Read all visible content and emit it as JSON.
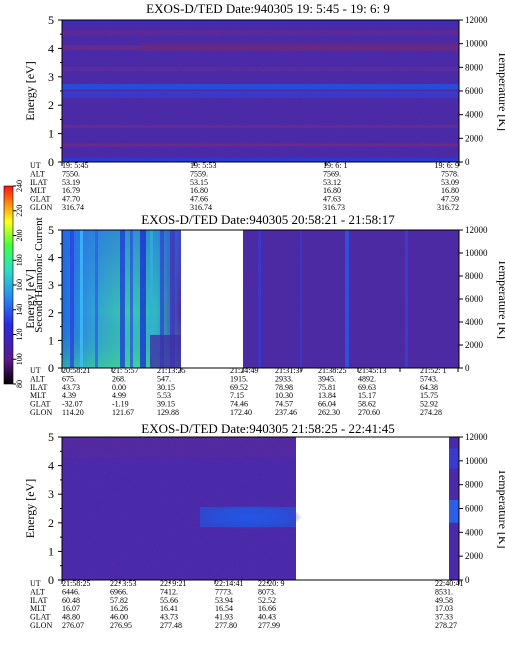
{
  "colorbar": {
    "label": "Second Harmonic Current",
    "ticks": [
      "80",
      "100",
      "120",
      "140",
      "160",
      "180",
      "200",
      "220",
      "240"
    ]
  },
  "row_labels": [
    "UT",
    "ALT",
    "ILAT",
    "MLT",
    "GLAT",
    "GLON"
  ],
  "chart_data": [
    {
      "type": "heatmap",
      "title": "EXOS-D/TED   Date:940305  19: 5:45 - 19: 6: 9",
      "ylabel": "Energy [eV]",
      "y2label": "Temperature [K]",
      "ylim": [
        0,
        5
      ],
      "y2lim": [
        0,
        12000
      ],
      "yticks": [
        "0",
        "1",
        "2",
        "3",
        "4",
        "5"
      ],
      "y2ticks": [
        "0",
        "2000",
        "4000",
        "6000",
        "8000",
        "10000",
        "12000"
      ],
      "columns": [
        {
          "UT": "19: 5:45",
          "ALT": "7550.",
          "ILAT": "53.19",
          "MLT": "16.79",
          "GLAT": "47.70",
          "GLON": "316.74"
        },
        {
          "UT": "19: 5:53",
          "ALT": "7559.",
          "ILAT": "53.15",
          "MLT": "16.80",
          "GLAT": "47.66",
          "GLON": "316.74"
        },
        {
          "UT": "19: 6: 1",
          "ALT": "7569.",
          "ILAT": "53.12",
          "MLT": "16.80",
          "GLAT": "47.63",
          "GLON": "316.73"
        },
        {
          "UT": "19: 6: 9",
          "ALT": "7578.",
          "ILAT": "53.09",
          "MLT": "16.80",
          "GLAT": "47.59",
          "GLON": "316.72"
        }
      ]
    },
    {
      "type": "heatmap",
      "title": "EXOS-D/TED   Date:940305  20:58:21 - 21:58:17",
      "ylabel": "Energy [eV]",
      "y2label": "Temperature [K]",
      "ylim": [
        0,
        5
      ],
      "y2lim": [
        0,
        12000
      ],
      "yticks": [
        "0",
        "1",
        "2",
        "3",
        "4",
        "5"
      ],
      "y2ticks": [
        "0",
        "2000",
        "4000",
        "6000",
        "8000",
        "10000",
        "12000"
      ],
      "columns": [
        {
          "UT": "20:58:21",
          "ALT": "675.",
          "ILAT": "43.73",
          "MLT": "4.39",
          "GLAT": "-32.07",
          "GLON": "114.20"
        },
        {
          "UT": "21: 5:57",
          "ALT": "268.",
          "ILAT": "0.00",
          "MLT": "4.99",
          "GLAT": "-1.19",
          "GLON": "121.67"
        },
        {
          "UT": "21:13:25",
          "ALT": "547.",
          "ILAT": "30.15",
          "MLT": "5.53",
          "GLAT": "39.15",
          "GLON": "129.88"
        },
        {
          "UT": "21:24:49",
          "ALT": "1915.",
          "ILAT": "69.52",
          "MLT": "7.15",
          "GLAT": "74.46",
          "GLON": "172.40"
        },
        {
          "UT": "21:31:37",
          "ALT": "2933.",
          "ILAT": "78.98",
          "MLT": "10.30",
          "GLAT": "74.57",
          "GLON": "237.46"
        },
        {
          "UT": "21:38:25",
          "ALT": "3945.",
          "ILAT": "75.81",
          "MLT": "13.84",
          "GLAT": "66.04",
          "GLON": "262.30"
        },
        {
          "UT": "21:45:13",
          "ALT": "4892.",
          "ILAT": "69.63",
          "MLT": "15.17",
          "GLAT": "58.62",
          "GLON": "270.60"
        },
        {
          "UT": "21:52: 1",
          "ALT": "5743.",
          "ILAT": "64.38",
          "MLT": "15.75",
          "GLAT": "52.92",
          "GLON": "274.28"
        }
      ]
    },
    {
      "type": "heatmap",
      "title": "EXOS-D/TED   Date:940305  21:58:25 - 22:41:45",
      "ylabel": "Energy [eV]",
      "y2label": "Temperature [K]",
      "ylim": [
        0,
        5
      ],
      "y2lim": [
        0,
        12000
      ],
      "yticks": [
        "0",
        "1",
        "2",
        "3",
        "4",
        "5"
      ],
      "y2ticks": [
        "0",
        "2000",
        "4000",
        "6000",
        "8000",
        "10000",
        "12000"
      ],
      "columns": [
        {
          "UT": "21:58:25",
          "ALT": "6446.",
          "ILAT": "60.48",
          "MLT": "16.07",
          "GLAT": "48.80",
          "GLON": "276.07"
        },
        {
          "UT": "22: 3:53",
          "ALT": "6966.",
          "ILAT": "57.82",
          "MLT": "16.26",
          "GLAT": "46.00",
          "GLON": "276.95"
        },
        {
          "UT": "22: 9:21",
          "ALT": "7412.",
          "ILAT": "55.66",
          "MLT": "16.41",
          "GLAT": "43.73",
          "GLON": "277.48"
        },
        {
          "UT": "22:14:41",
          "ALT": "7773.",
          "ILAT": "53.94",
          "MLT": "16.54",
          "GLAT": "41.93",
          "GLON": "277.80"
        },
        {
          "UT": "22:20: 9",
          "ALT": "8073.",
          "ILAT": "52.52",
          "MLT": "16.66",
          "GLAT": "40.43",
          "GLON": "277.99"
        },
        {
          "UT": "22:40:41",
          "ALT": "8531.",
          "ILAT": "49.58",
          "MLT": "17.03",
          "GLAT": "37.33",
          "GLON": "278.27"
        }
      ]
    }
  ]
}
